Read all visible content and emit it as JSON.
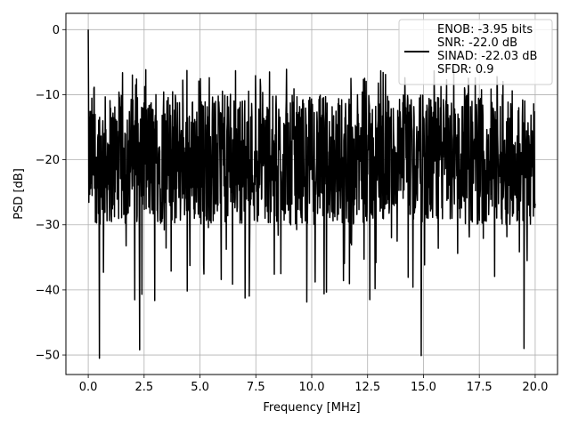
{
  "chart_data": {
    "type": "line",
    "xlabel": "Frequency [MHz]",
    "ylabel": "PSD [dB]",
    "xlim": [
      -1.0,
      21.0
    ],
    "ylim": [
      -53,
      2.5
    ],
    "x_ticks": [
      0.0,
      2.5,
      5.0,
      7.5,
      10.0,
      12.5,
      15.0,
      17.5,
      20.0
    ],
    "x_tick_labels": [
      "0.0",
      "2.5",
      "5.0",
      "7.5",
      "10.0",
      "12.5",
      "15.0",
      "17.5",
      "20.0"
    ],
    "y_ticks": [
      0,
      -10,
      -20,
      -30,
      -40,
      -50
    ],
    "y_tick_labels": [
      "0",
      "−10",
      "−20",
      "−30",
      "−40",
      "−50"
    ],
    "grid": true,
    "legend_position": "top-right",
    "series": [
      {
        "name": "ENOB: -3.95 bits\nSNR: -22.0 dB\nSINAD: -22.03 dB\nSFDR: 0.9",
        "color": "#000000",
        "x_range": [
          0.0,
          20.0
        ],
        "approx_points": 1500,
        "envelope_upper_dB": -10,
        "envelope_lower_dB": -30,
        "peaks": [
          {
            "x": 0.0,
            "y": 0.0
          }
        ],
        "dips": [
          {
            "x": 0.5,
            "y": -50.5
          },
          {
            "x": 2.3,
            "y": -49.2
          },
          {
            "x": 12.6,
            "y": -41.5
          },
          {
            "x": 14.9,
            "y": -50.1
          },
          {
            "x": 19.5,
            "y": -49.0
          }
        ]
      }
    ]
  }
}
